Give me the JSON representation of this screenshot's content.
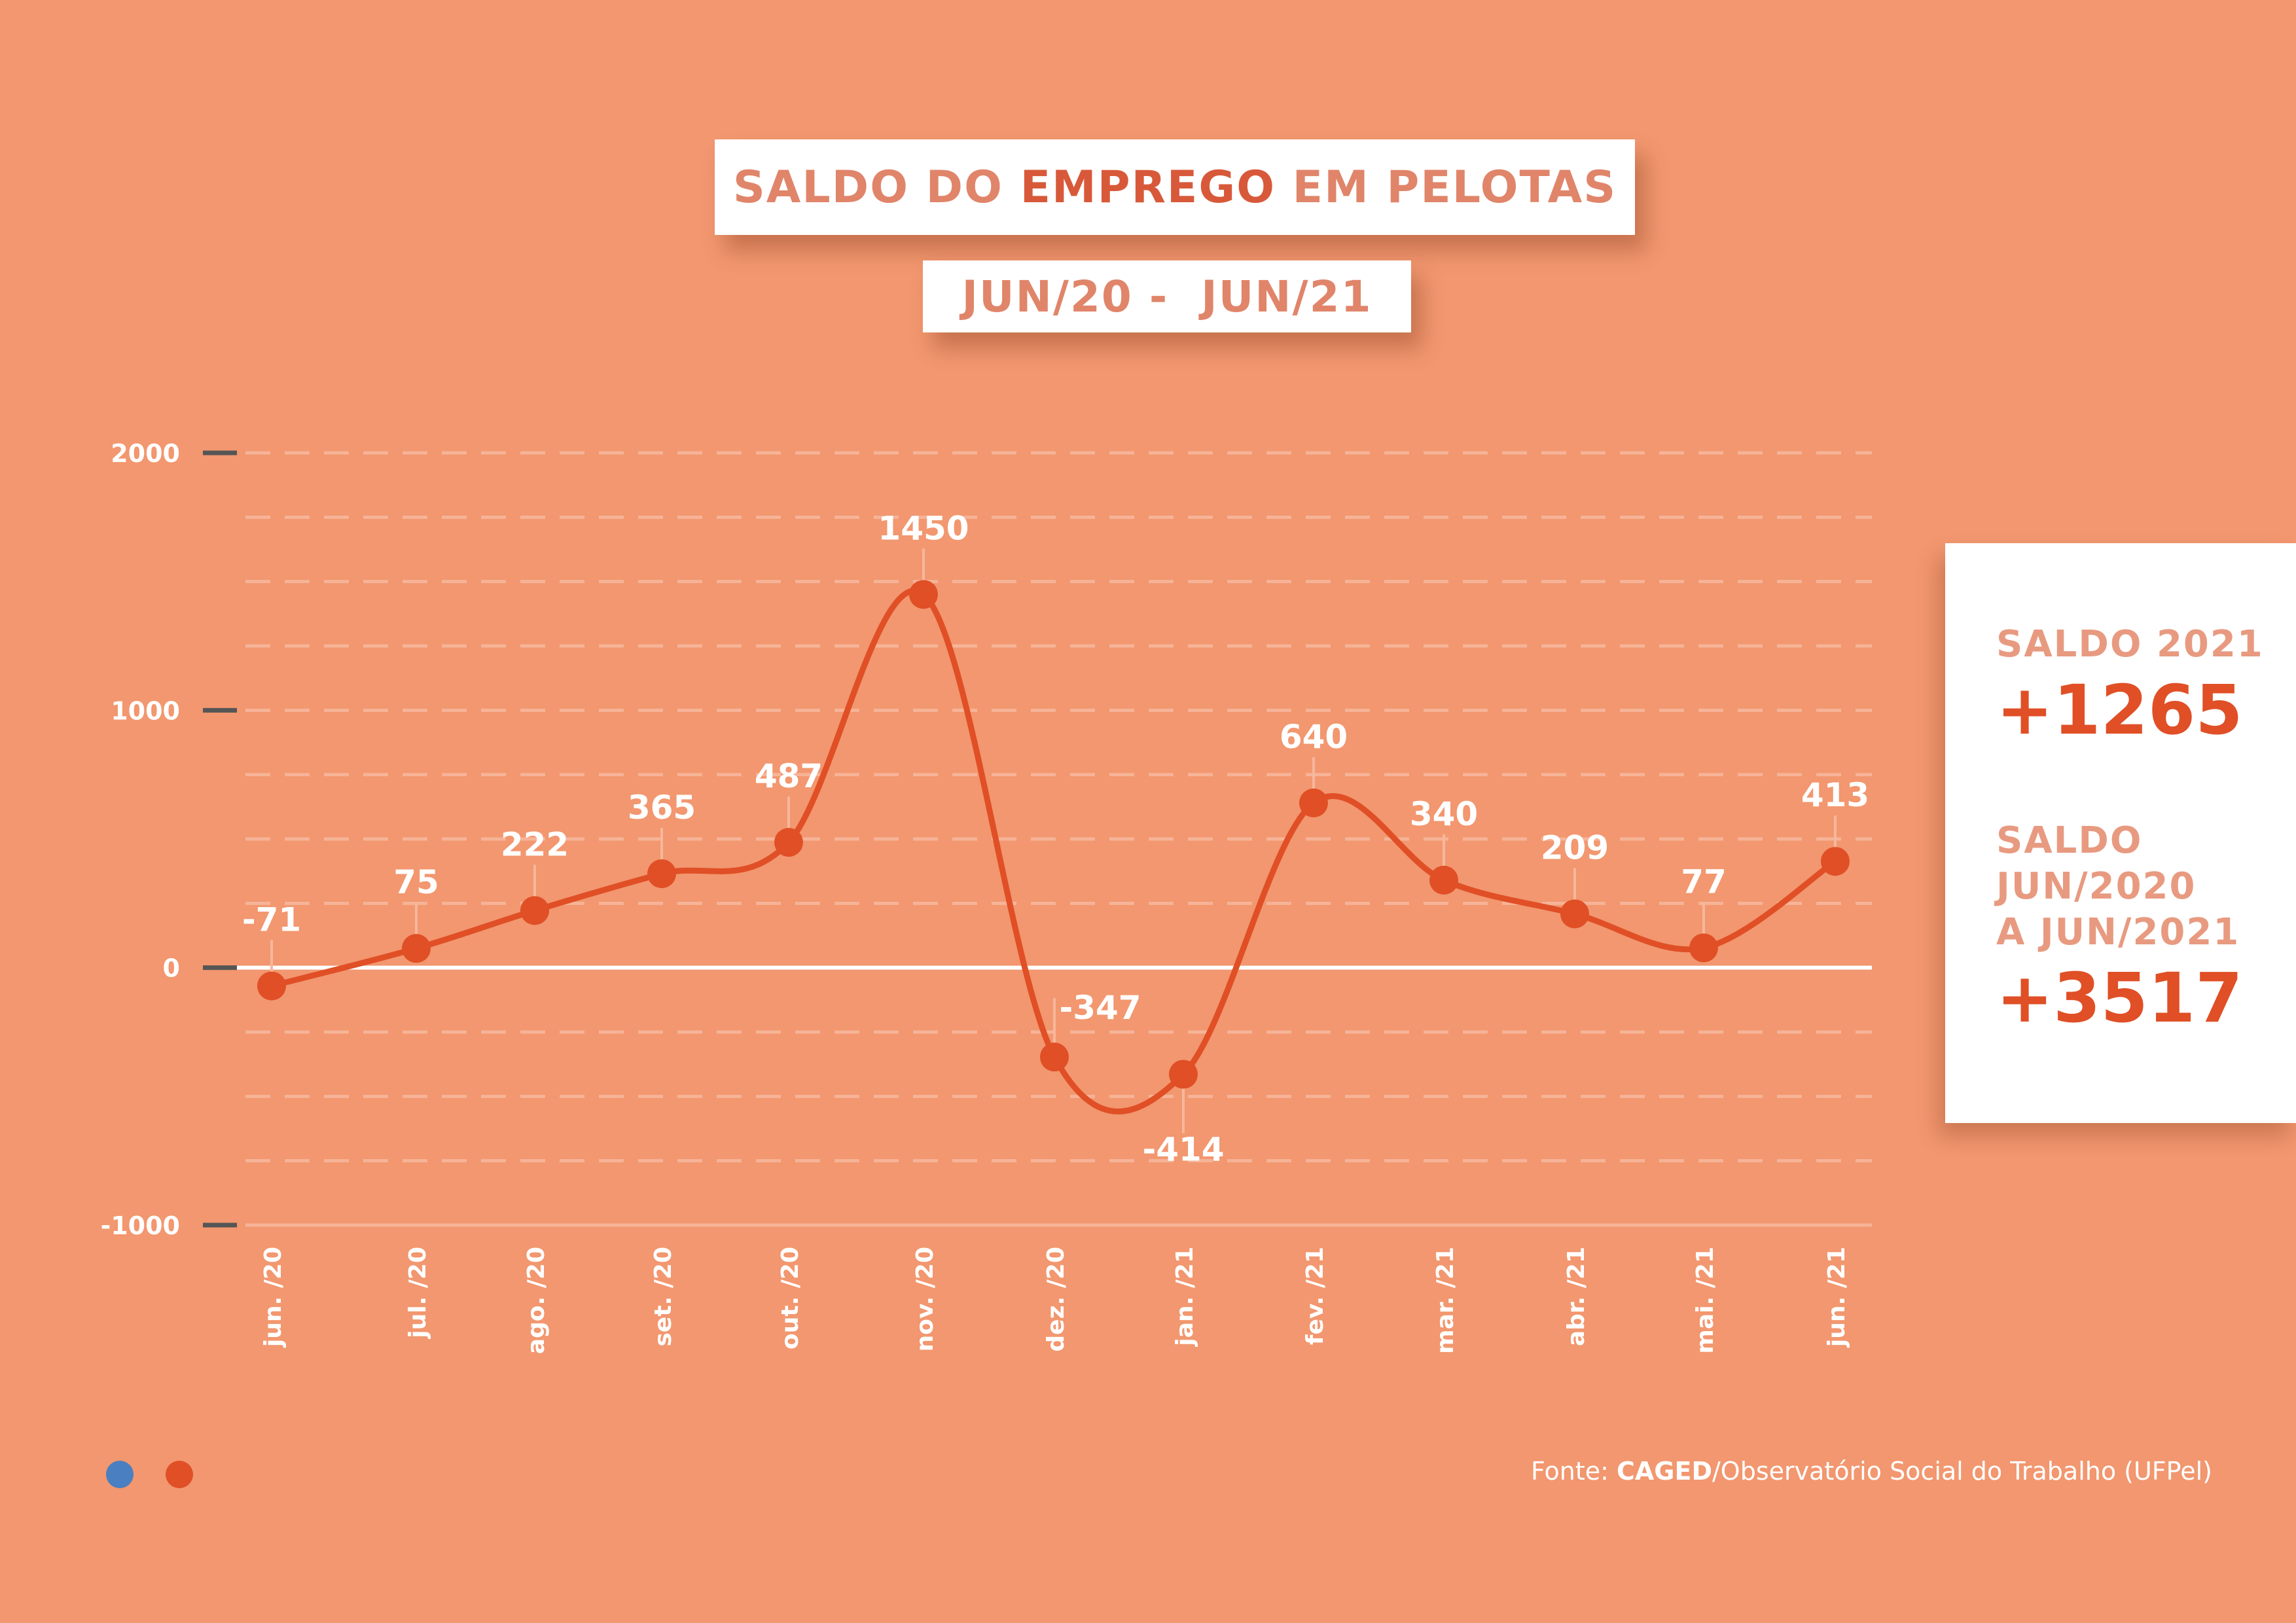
{
  "title": {
    "part1": "SALDO DO ",
    "bold": "EMPREGO",
    "part2": " EM PELOTAS"
  },
  "subtitle": "JUN/20 -  JUN/21",
  "summary": {
    "label1": "SALDO 2021",
    "value1": "+1265",
    "label2_lines": [
      "SALDO",
      "JUN/2020",
      "A JUN/2021"
    ],
    "value2": "+3517"
  },
  "source": {
    "prefix": "Fonte: ",
    "bold": "CAGED",
    "suffix": "/Observatório Social do Trabalho (UFPel)"
  },
  "colors": {
    "background": "#f2976f",
    "line": "#e04f26",
    "title_text": "#e0856a",
    "legend_blue": "#4a7fc1",
    "legend_orange": "#e04f26"
  },
  "chart_data": {
    "type": "line",
    "categories": [
      "jun. /20",
      "jul. /20",
      "ago. /20",
      "set. /20",
      "out. /20",
      "nov. /20",
      "dez. /20",
      "jan. /21",
      "fev. /21",
      "mar. /21",
      "abr. /21",
      "mai. /21",
      "jun. /21"
    ],
    "series": [
      {
        "values": [
          -71,
          75,
          222,
          365,
          487,
          1450,
          -347,
          -414,
          640,
          340,
          209,
          77,
          413
        ]
      }
    ],
    "data_labels": [
      "-71",
      "75",
      "222",
      "365",
      "487",
      "1450",
      "-347",
      "-414",
      "640",
      "340",
      "209",
      "77",
      "413"
    ],
    "y_ticks": [
      2000,
      1000,
      0,
      -1000
    ],
    "y_tick_labels": [
      "2000",
      "1000",
      "0",
      "-1000"
    ],
    "ylim": [
      -1000,
      2000
    ],
    "grid": true
  }
}
